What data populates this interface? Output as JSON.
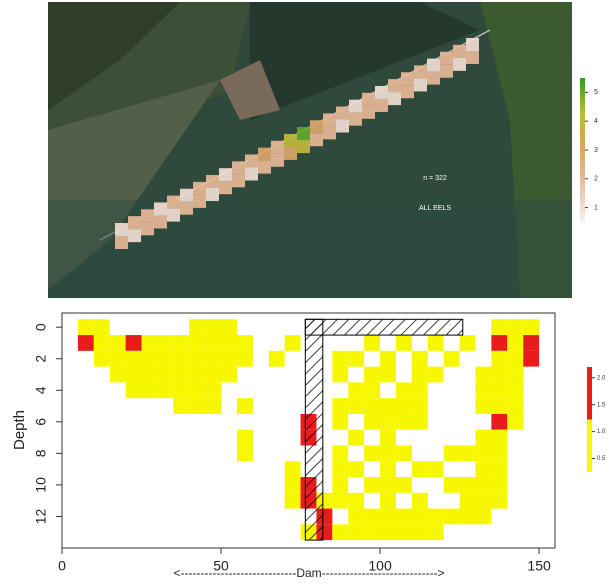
{
  "chart_data": [
    {
      "type": "heatmap",
      "annotations": [
        "n = 322",
        "ALL EELS"
      ],
      "colorbar_ticks": [
        1,
        2,
        3,
        4,
        5
      ],
      "colorbar_range": [
        0.5,
        5.5
      ],
      "values": [
        [
          1,
          2
        ],
        [
          2,
          1
        ],
        [
          2,
          2
        ],
        [
          1,
          2
        ],
        [
          2,
          1
        ],
        [
          1,
          2
        ],
        [
          2,
          2
        ],
        [
          2,
          1
        ],
        [
          1,
          2
        ],
        [
          2,
          2
        ],
        [
          2,
          1
        ],
        [
          3,
          2
        ],
        [
          2,
          2
        ],
        [
          4,
          3
        ],
        [
          5,
          4
        ],
        [
          3,
          2
        ],
        [
          2,
          2
        ],
        [
          2,
          1
        ],
        [
          1,
          2
        ],
        [
          2,
          2
        ],
        [
          1,
          2
        ],
        [
          2,
          1
        ],
        [
          2,
          2
        ],
        [
          2,
          1
        ],
        [
          1,
          2
        ],
        [
          2,
          2
        ],
        [
          2,
          1
        ],
        [
          1,
          2
        ]
      ]
    },
    {
      "type": "tile",
      "ylabel": "Depth",
      "xlabel": "<-----------------------------Dam----------------------------->",
      "xlim": [
        0,
        155
      ],
      "ylim": [
        14,
        -0.9
      ],
      "xticks": [
        0,
        50,
        100,
        150
      ],
      "yticks": [
        0,
        2,
        4,
        6,
        8,
        10,
        12
      ],
      "colorbar_ticks": [
        {
          "value": 0.5,
          "label": "0.5"
        },
        {
          "value": 1,
          "label": "1.0"
        },
        {
          "value": 1.5,
          "label": "1.5"
        },
        {
          "value": 2,
          "label": "2.0"
        }
      ],
      "colorbar_range": [
        0.25,
        2.2
      ],
      "cells": [
        [
          5,
          0,
          1
        ],
        [
          10,
          0,
          1
        ],
        [
          40,
          0,
          1
        ],
        [
          45,
          0,
          1
        ],
        [
          50,
          0,
          1
        ],
        [
          135,
          0,
          1
        ],
        [
          140,
          0,
          1
        ],
        [
          145,
          0,
          1
        ],
        [
          5,
          1,
          2
        ],
        [
          10,
          1,
          1
        ],
        [
          15,
          1,
          1
        ],
        [
          20,
          1,
          2
        ],
        [
          25,
          1,
          1
        ],
        [
          30,
          1,
          1
        ],
        [
          35,
          1,
          1
        ],
        [
          40,
          1,
          1
        ],
        [
          45,
          1,
          1
        ],
        [
          50,
          1,
          1
        ],
        [
          55,
          1,
          1
        ],
        [
          70,
          1,
          1
        ],
        [
          95,
          1,
          1
        ],
        [
          105,
          1,
          1
        ],
        [
          115,
          1,
          1
        ],
        [
          125,
          1,
          1
        ],
        [
          135,
          1,
          2
        ],
        [
          140,
          1,
          1
        ],
        [
          145,
          1,
          2
        ],
        [
          10,
          2,
          1
        ],
        [
          15,
          2,
          1
        ],
        [
          20,
          2,
          1
        ],
        [
          25,
          2,
          1
        ],
        [
          30,
          2,
          1
        ],
        [
          35,
          2,
          1
        ],
        [
          40,
          2,
          1
        ],
        [
          45,
          2,
          1
        ],
        [
          50,
          2,
          1
        ],
        [
          55,
          2,
          1
        ],
        [
          65,
          2,
          1
        ],
        [
          85,
          2,
          1
        ],
        [
          90,
          2,
          1
        ],
        [
          100,
          2,
          1
        ],
        [
          110,
          2,
          1
        ],
        [
          120,
          2,
          1
        ],
        [
          135,
          2,
          1
        ],
        [
          140,
          2,
          1
        ],
        [
          145,
          2,
          2
        ],
        [
          15,
          3,
          1
        ],
        [
          20,
          3,
          1
        ],
        [
          25,
          3,
          1
        ],
        [
          30,
          3,
          1
        ],
        [
          35,
          3,
          1
        ],
        [
          40,
          3,
          1
        ],
        [
          45,
          3,
          1
        ],
        [
          50,
          3,
          1
        ],
        [
          85,
          3,
          1
        ],
        [
          95,
          3,
          1
        ],
        [
          100,
          3,
          1
        ],
        [
          110,
          3,
          1
        ],
        [
          115,
          3,
          1
        ],
        [
          130,
          3,
          1
        ],
        [
          135,
          3,
          1
        ],
        [
          140,
          3,
          1
        ],
        [
          20,
          4,
          1
        ],
        [
          25,
          4,
          1
        ],
        [
          30,
          4,
          1
        ],
        [
          35,
          4,
          1
        ],
        [
          40,
          4,
          1
        ],
        [
          45,
          4,
          1
        ],
        [
          90,
          4,
          1
        ],
        [
          95,
          4,
          1
        ],
        [
          105,
          4,
          1
        ],
        [
          110,
          4,
          1
        ],
        [
          130,
          4,
          1
        ],
        [
          135,
          4,
          1
        ],
        [
          140,
          4,
          1
        ],
        [
          35,
          5,
          1
        ],
        [
          40,
          5,
          1
        ],
        [
          45,
          5,
          1
        ],
        [
          55,
          5,
          1
        ],
        [
          85,
          5,
          1
        ],
        [
          90,
          5,
          1
        ],
        [
          95,
          5,
          1
        ],
        [
          100,
          5,
          1
        ],
        [
          105,
          5,
          1
        ],
        [
          110,
          5,
          1
        ],
        [
          130,
          5,
          1
        ],
        [
          135,
          5,
          1
        ],
        [
          140,
          5,
          1
        ],
        [
          75,
          6,
          2
        ],
        [
          85,
          6,
          1
        ],
        [
          95,
          6,
          1
        ],
        [
          100,
          6,
          1
        ],
        [
          105,
          6,
          1
        ],
        [
          110,
          6,
          1
        ],
        [
          135,
          6,
          2
        ],
        [
          140,
          6,
          1
        ],
        [
          55,
          7,
          1
        ],
        [
          75,
          7,
          2
        ],
        [
          90,
          7,
          1
        ],
        [
          100,
          7,
          1
        ],
        [
          130,
          7,
          1
        ],
        [
          135,
          7,
          1
        ],
        [
          55,
          8,
          1
        ],
        [
          85,
          8,
          1
        ],
        [
          95,
          8,
          1
        ],
        [
          100,
          8,
          1
        ],
        [
          105,
          8,
          1
        ],
        [
          120,
          8,
          1
        ],
        [
          125,
          8,
          1
        ],
        [
          130,
          8,
          1
        ],
        [
          135,
          8,
          1
        ],
        [
          70,
          9,
          1
        ],
        [
          85,
          9,
          1
        ],
        [
          90,
          9,
          1
        ],
        [
          100,
          9,
          1
        ],
        [
          110,
          9,
          1
        ],
        [
          115,
          9,
          1
        ],
        [
          130,
          9,
          1
        ],
        [
          135,
          9,
          1
        ],
        [
          70,
          10,
          1
        ],
        [
          75,
          10,
          2
        ],
        [
          85,
          10,
          1
        ],
        [
          95,
          10,
          1
        ],
        [
          100,
          10,
          1
        ],
        [
          105,
          10,
          1
        ],
        [
          120,
          10,
          1
        ],
        [
          125,
          10,
          1
        ],
        [
          130,
          10,
          1
        ],
        [
          135,
          10,
          1
        ],
        [
          70,
          11,
          1
        ],
        [
          75,
          11,
          2
        ],
        [
          80,
          11,
          1
        ],
        [
          85,
          11,
          1
        ],
        [
          90,
          11,
          1
        ],
        [
          100,
          11,
          1
        ],
        [
          110,
          11,
          1
        ],
        [
          125,
          11,
          1
        ],
        [
          130,
          11,
          1
        ],
        [
          135,
          11,
          1
        ],
        [
          80,
          12,
          2
        ],
        [
          90,
          12,
          1
        ],
        [
          95,
          12,
          1
        ],
        [
          100,
          12,
          1
        ],
        [
          105,
          12,
          1
        ],
        [
          110,
          12,
          1
        ],
        [
          115,
          12,
          1
        ],
        [
          120,
          12,
          1
        ],
        [
          125,
          12,
          1
        ],
        [
          130,
          12,
          1
        ],
        [
          75,
          13,
          1
        ],
        [
          80,
          13,
          2
        ],
        [
          85,
          13,
          1
        ],
        [
          90,
          13,
          1
        ],
        [
          95,
          13,
          1
        ],
        [
          100,
          13,
          1
        ],
        [
          105,
          13,
          1
        ],
        [
          110,
          13,
          1
        ],
        [
          115,
          13,
          1
        ]
      ]
    }
  ]
}
